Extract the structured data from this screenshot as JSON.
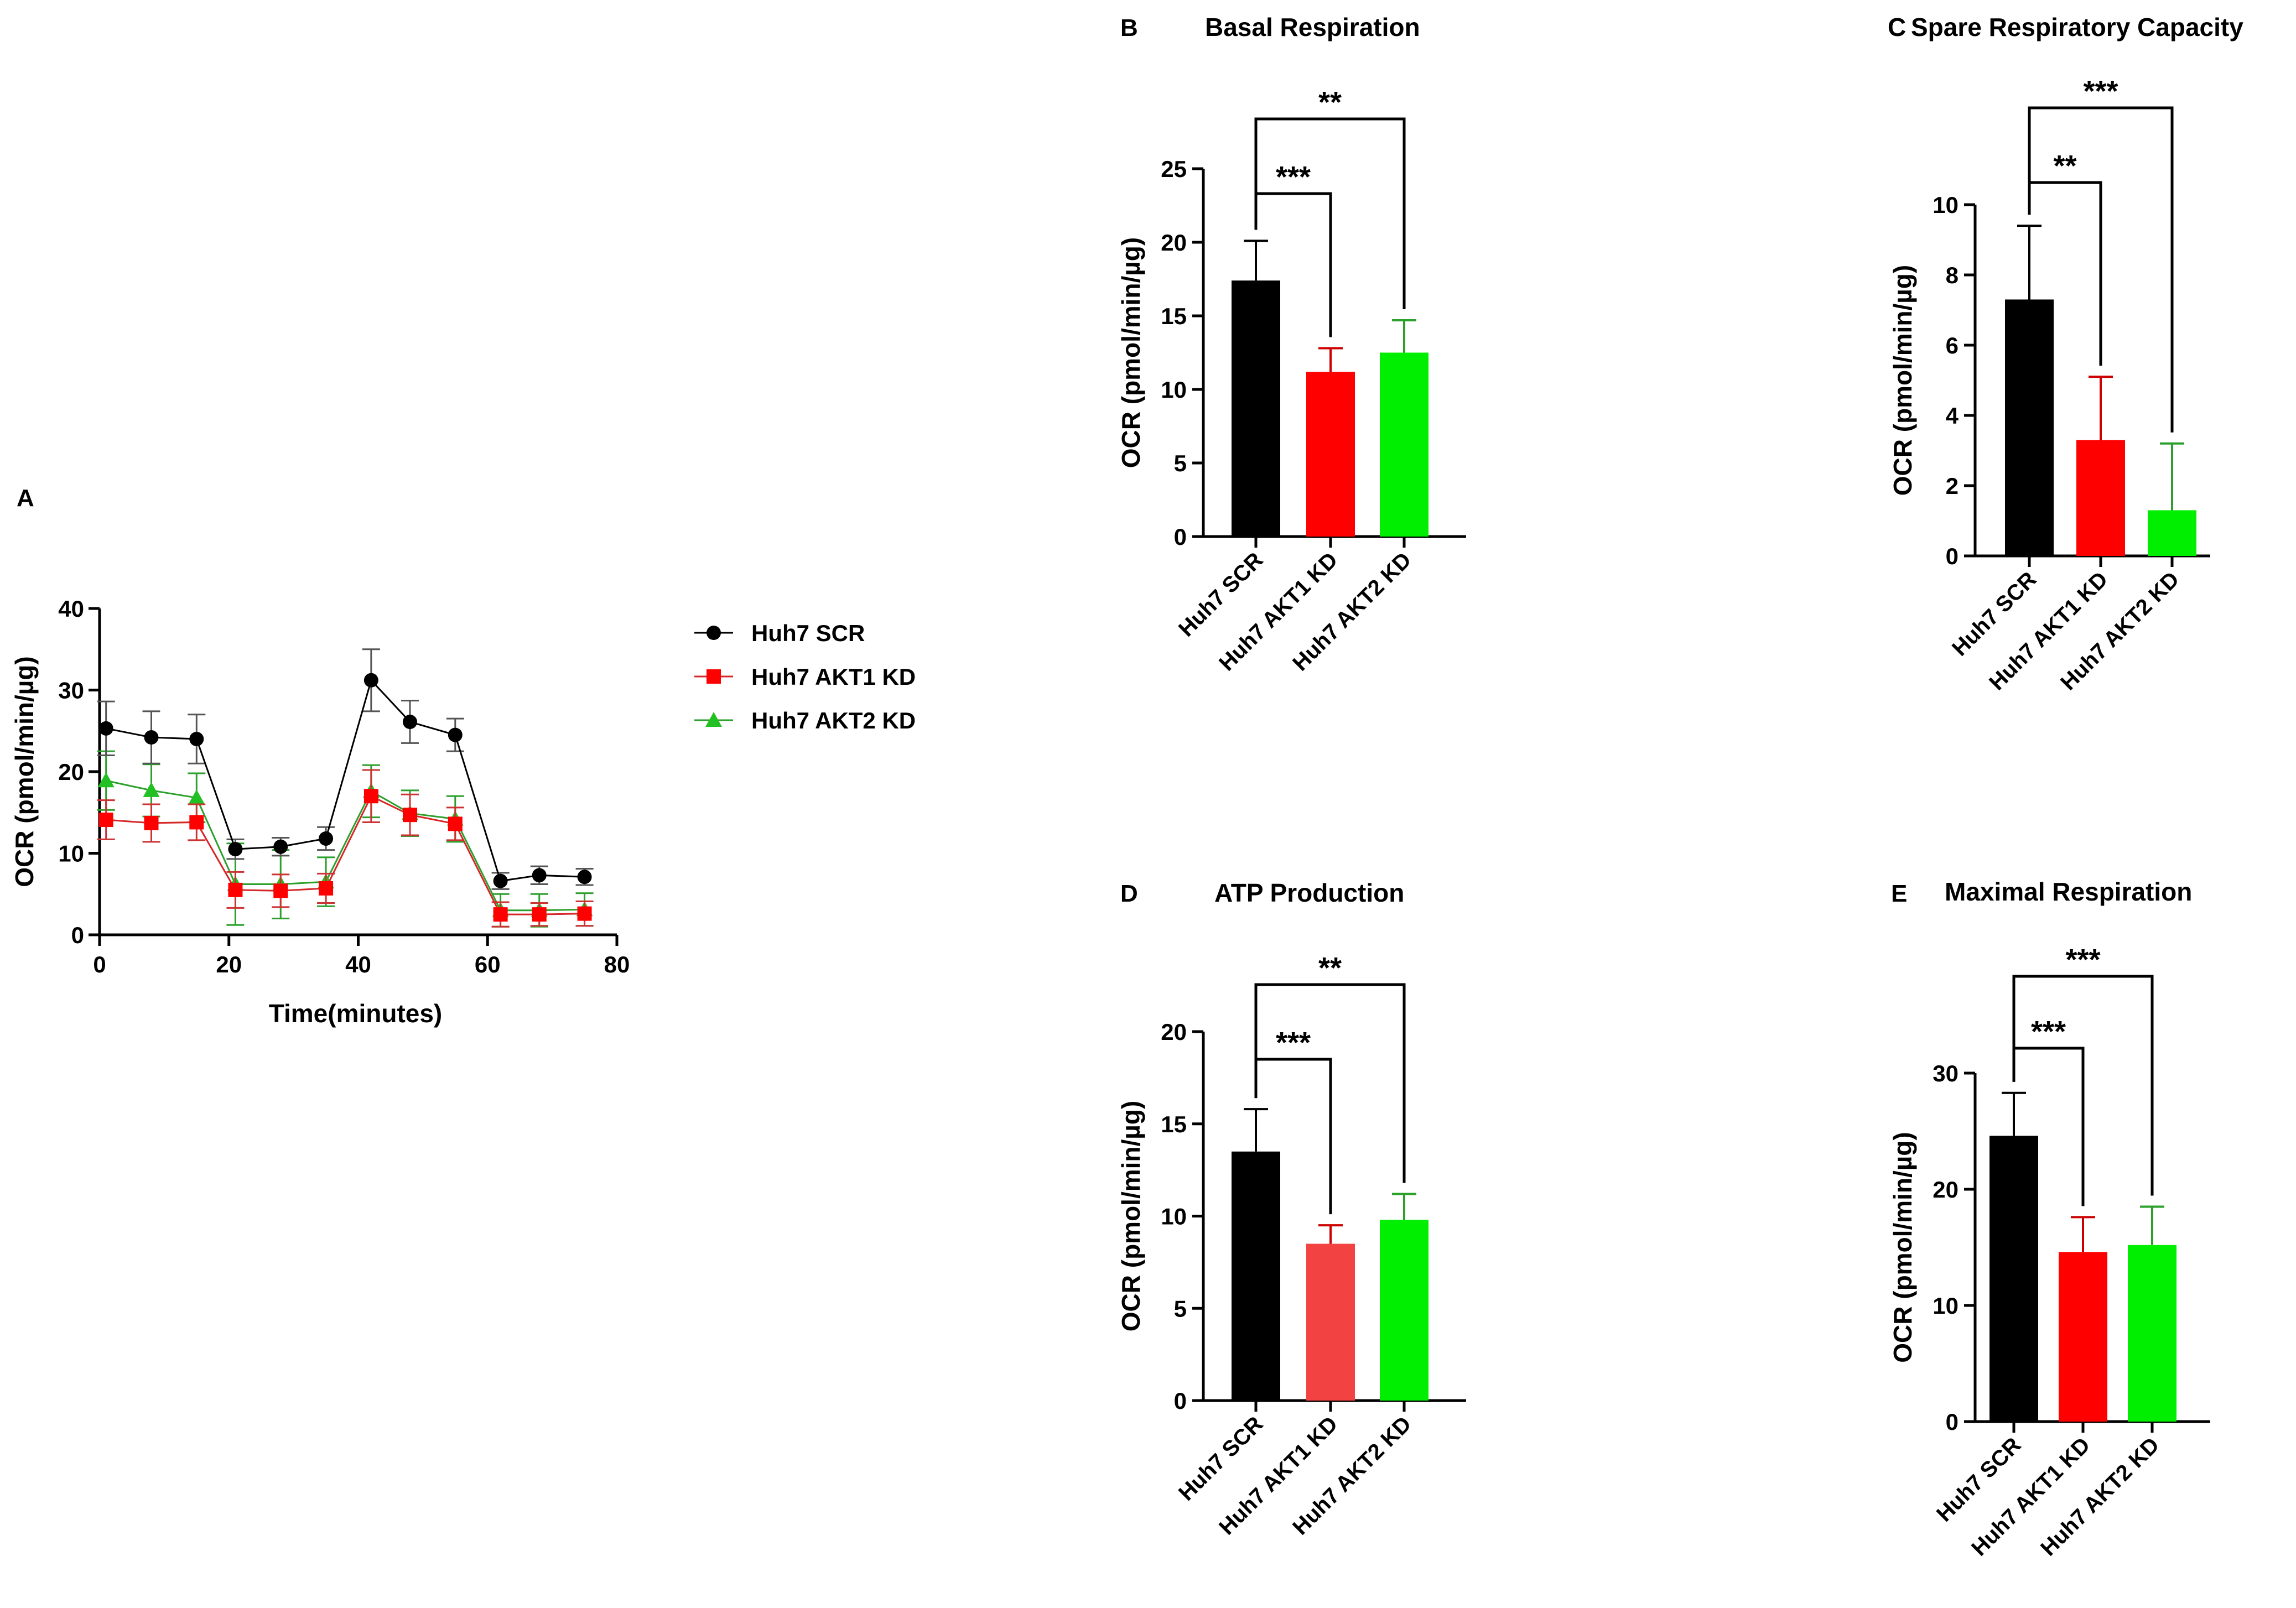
{
  "colors": {
    "scr": "#000000",
    "akt1": "#ff0000",
    "akt1_light": "#f24242",
    "akt2": "#00ee00",
    "akt2_line": "#2ca02c"
  },
  "legend": [
    {
      "label": "Huh7 SCR",
      "marker": "circle"
    },
    {
      "label": "Huh7 AKT1 KD",
      "marker": "square"
    },
    {
      "label": "Huh7 AKT2 KD",
      "marker": "triangle"
    }
  ],
  "chart_data": [
    {
      "panel": "A",
      "type": "line",
      "title": "",
      "xlabel": "Time(minutes)",
      "ylabel": "OCR (pmol/min/µg)",
      "xlim": [
        0,
        80
      ],
      "ylim": [
        0,
        40
      ],
      "xticks": [
        0,
        20,
        40,
        60,
        80
      ],
      "yticks": [
        0,
        10,
        20,
        30,
        40
      ],
      "x": [
        1,
        8,
        15,
        21,
        28,
        35,
        42,
        48,
        55,
        62,
        68,
        75
      ],
      "series": [
        {
          "name": "Huh7 SCR",
          "values": [
            25.3,
            24.2,
            24.0,
            10.5,
            10.8,
            11.8,
            31.2,
            26.1,
            24.5,
            6.6,
            7.3,
            7.1
          ],
          "errors": [
            3.3,
            3.2,
            3.0,
            1.2,
            1.1,
            1.4,
            3.8,
            2.6,
            2.0,
            1.0,
            1.1,
            1.0
          ]
        },
        {
          "name": "Huh7 AKT1 KD",
          "values": [
            14.1,
            13.7,
            13.8,
            5.5,
            5.4,
            5.7,
            17.0,
            14.7,
            13.6,
            2.5,
            2.5,
            2.6
          ],
          "errors": [
            2.4,
            2.3,
            2.2,
            2.2,
            2.0,
            1.8,
            3.2,
            2.5,
            2.0,
            1.5,
            1.4,
            1.5
          ]
        },
        {
          "name": "Huh7 AKT2 KD",
          "values": [
            18.9,
            17.7,
            16.8,
            6.2,
            6.2,
            6.5,
            17.6,
            14.9,
            14.2,
            3.0,
            3.0,
            3.1
          ],
          "errors": [
            3.6,
            3.2,
            3.0,
            5.0,
            4.2,
            3.0,
            3.2,
            2.8,
            2.8,
            2.0,
            2.0,
            2.0
          ]
        }
      ]
    },
    {
      "panel": "B",
      "type": "bar",
      "title": "Basal Respiration",
      "ylabel": "OCR (pmol/min/µg)",
      "ylim": [
        0,
        25
      ],
      "yticks": [
        0,
        5,
        10,
        15,
        20,
        25
      ],
      "categories": [
        "Huh7 SCR",
        "Huh7 AKT1 KD",
        "Huh7 AKT2 KD"
      ],
      "values": [
        17.4,
        11.2,
        12.5
      ],
      "errors": [
        2.7,
        1.6,
        2.2
      ],
      "significance": [
        {
          "from": 0,
          "to": 1,
          "label": "***"
        },
        {
          "from": 0,
          "to": 2,
          "label": "**"
        }
      ]
    },
    {
      "panel": "C",
      "type": "bar",
      "title": "Spare Respiratory Capacity",
      "ylabel": "OCR (pmol/min/µg)",
      "ylim": [
        0,
        10
      ],
      "yticks": [
        0,
        2,
        4,
        6,
        8,
        10
      ],
      "categories": [
        "Huh7 SCR",
        "Huh7 AKT1 KD",
        "Huh7 AKT2 KD"
      ],
      "values": [
        7.3,
        3.3,
        1.3
      ],
      "errors": [
        2.1,
        1.8,
        1.9
      ],
      "significance": [
        {
          "from": 0,
          "to": 1,
          "label": "**"
        },
        {
          "from": 0,
          "to": 2,
          "label": "***"
        }
      ]
    },
    {
      "panel": "D",
      "type": "bar",
      "title": "ATP Production",
      "ylabel": "OCR (pmol/min/µg)",
      "ylim": [
        0,
        20
      ],
      "yticks": [
        0,
        5,
        10,
        15,
        20
      ],
      "categories": [
        "Huh7 SCR",
        "Huh7 AKT1 KD",
        "Huh7 AKT2 KD"
      ],
      "values": [
        13.5,
        8.5,
        9.8
      ],
      "errors": [
        2.3,
        1.0,
        1.4
      ],
      "significance": [
        {
          "from": 0,
          "to": 1,
          "label": "***"
        },
        {
          "from": 0,
          "to": 2,
          "label": "**"
        }
      ]
    },
    {
      "panel": "E",
      "type": "bar",
      "title": "Maximal Respiration",
      "ylabel": "OCR (pmol/min/µg)",
      "ylim": [
        0,
        30
      ],
      "yticks": [
        0,
        10,
        20,
        30
      ],
      "categories": [
        "Huh7 SCR",
        "Huh7 AKT1 KD",
        "Huh7 AKT2 KD"
      ],
      "values": [
        24.6,
        14.6,
        15.2
      ],
      "errors": [
        3.7,
        3.0,
        3.3
      ],
      "significance": [
        {
          "from": 0,
          "to": 1,
          "label": "***"
        },
        {
          "from": 0,
          "to": 2,
          "label": "***"
        }
      ]
    }
  ]
}
